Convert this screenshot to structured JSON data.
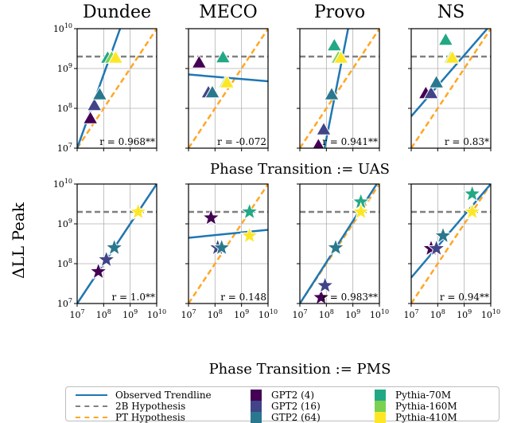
{
  "chart_data": {
    "type": "scatter",
    "ylabel": "ΔLL Peak",
    "columns": [
      "Dundee",
      "MECO",
      "Provo",
      "NS"
    ],
    "axis": {
      "scale": "log",
      "xlim": [
        10000000.0,
        10000000000.0
      ],
      "ylim": [
        10000000.0,
        10000000000.0
      ],
      "grid": true,
      "x_tick_labels": [
        "10^7",
        "10^8",
        "10^9",
        "10^10"
      ],
      "y_tick_labels": [
        "10^7",
        "10^8",
        "10^9",
        "10^10"
      ]
    },
    "two_b_hypothesis_y": 2000000000,
    "models": [
      {
        "name": "GPT2 (4)",
        "color": "#440154"
      },
      {
        "name": "GPT2 (16)",
        "color": "#414487"
      },
      {
        "name": "GTP2 (64)",
        "color": "#2a788e"
      },
      {
        "name": "Pythia-70M",
        "color": "#22a884"
      },
      {
        "name": "Pythia-160M",
        "color": "#7ad151"
      },
      {
        "name": "Pythia-410M",
        "color": "#fde725"
      }
    ],
    "rows": [
      {
        "title": "Phase Transition := UAS",
        "marker": "triangle",
        "panels": [
          {
            "dataset": "Dundee",
            "r_label": "r = 0.968**",
            "trend": [
              [
                7.0,
                7.0
              ],
              [
                8.62,
                10.0
              ]
            ],
            "points": [
              [
                7.5,
                7.75
              ],
              [
                7.65,
                8.08
              ],
              [
                7.85,
                8.35
              ],
              [
                8.15,
                9.27
              ],
              [
                8.3,
                9.27
              ],
              [
                8.45,
                9.27
              ]
            ]
          },
          {
            "dataset": "MECO",
            "r_label": "r = -0.072",
            "trend": [
              [
                7.0,
                8.85
              ],
              [
                10.0,
                8.68
              ]
            ],
            "points": [
              [
                7.4,
                9.15
              ],
              [
                7.75,
                8.4
              ],
              [
                7.9,
                8.4
              ],
              [
                8.3,
                9.28
              ],
              [
                8.4,
                8.65
              ],
              [
                8.45,
                8.65
              ]
            ]
          },
          {
            "dataset": "Provo",
            "r_label": "r = 0.941**",
            "trend": [
              [
                7.93,
                7.0
              ],
              [
                8.82,
                10.0
              ]
            ],
            "points": [
              [
                7.7,
                7.07
              ],
              [
                7.9,
                7.47
              ],
              [
                8.2,
                8.35
              ],
              [
                8.3,
                9.58
              ],
              [
                8.45,
                9.27
              ],
              [
                8.55,
                9.27
              ]
            ]
          },
          {
            "dataset": "NS",
            "r_label": "r = 0.83*",
            "trend": [
              [
                7.0,
                7.8
              ],
              [
                10.0,
                10.1
              ]
            ],
            "points": [
              [
                7.55,
                8.38
              ],
              [
                7.75,
                8.38
              ],
              [
                7.95,
                8.65
              ],
              [
                8.3,
                9.72
              ],
              [
                8.5,
                9.27
              ],
              [
                8.55,
                9.27
              ]
            ]
          }
        ]
      },
      {
        "title": "Phase Transition := PMS",
        "marker": "star",
        "panels": [
          {
            "dataset": "Dundee",
            "r_label": "r = 1.0**",
            "trend": [
              [
                7.0,
                7.0
              ],
              [
                10.0,
                10.0
              ]
            ],
            "points": [
              [
                7.8,
                7.8
              ],
              [
                8.1,
                8.1
              ],
              [
                8.4,
                8.4
              ],
              [
                9.3,
                9.3
              ],
              [
                9.3,
                9.3
              ],
              [
                9.3,
                9.3
              ]
            ]
          },
          {
            "dataset": "MECO",
            "r_label": "r = 0.148",
            "trend": [
              [
                7.0,
                8.65
              ],
              [
                10.0,
                8.85
              ]
            ],
            "points": [
              [
                7.85,
                9.15
              ],
              [
                8.1,
                8.4
              ],
              [
                8.25,
                8.4
              ],
              [
                9.3,
                9.3
              ],
              [
                9.3,
                8.7
              ],
              [
                9.3,
                8.7
              ]
            ]
          },
          {
            "dataset": "Provo",
            "r_label": "r = 0.983**",
            "trend": [
              [
                7.0,
                7.0
              ],
              [
                9.9,
                10.0
              ]
            ],
            "points": [
              [
                7.8,
                7.15
              ],
              [
                7.95,
                7.45
              ],
              [
                8.35,
                8.4
              ],
              [
                9.3,
                9.55
              ],
              [
                9.3,
                9.3
              ],
              [
                9.3,
                9.3
              ]
            ]
          },
          {
            "dataset": "NS",
            "r_label": "r = 0.94**",
            "trend": [
              [
                7.0,
                7.65
              ],
              [
                10.0,
                10.0
              ]
            ],
            "points": [
              [
                7.75,
                8.38
              ],
              [
                7.95,
                8.38
              ],
              [
                8.2,
                8.7
              ],
              [
                9.3,
                9.75
              ],
              [
                9.3,
                9.3
              ],
              [
                9.3,
                9.3
              ]
            ]
          }
        ]
      }
    ]
  },
  "legend": {
    "lines": [
      {
        "label": "Observed Trendline",
        "color": "#1f77b4",
        "style": "solid"
      },
      {
        "label": "2B Hypothesis",
        "color": "#808080",
        "style": "dashed"
      },
      {
        "label": "PT Hypothesis",
        "color": "#ffa726",
        "style": "dashed"
      }
    ]
  }
}
